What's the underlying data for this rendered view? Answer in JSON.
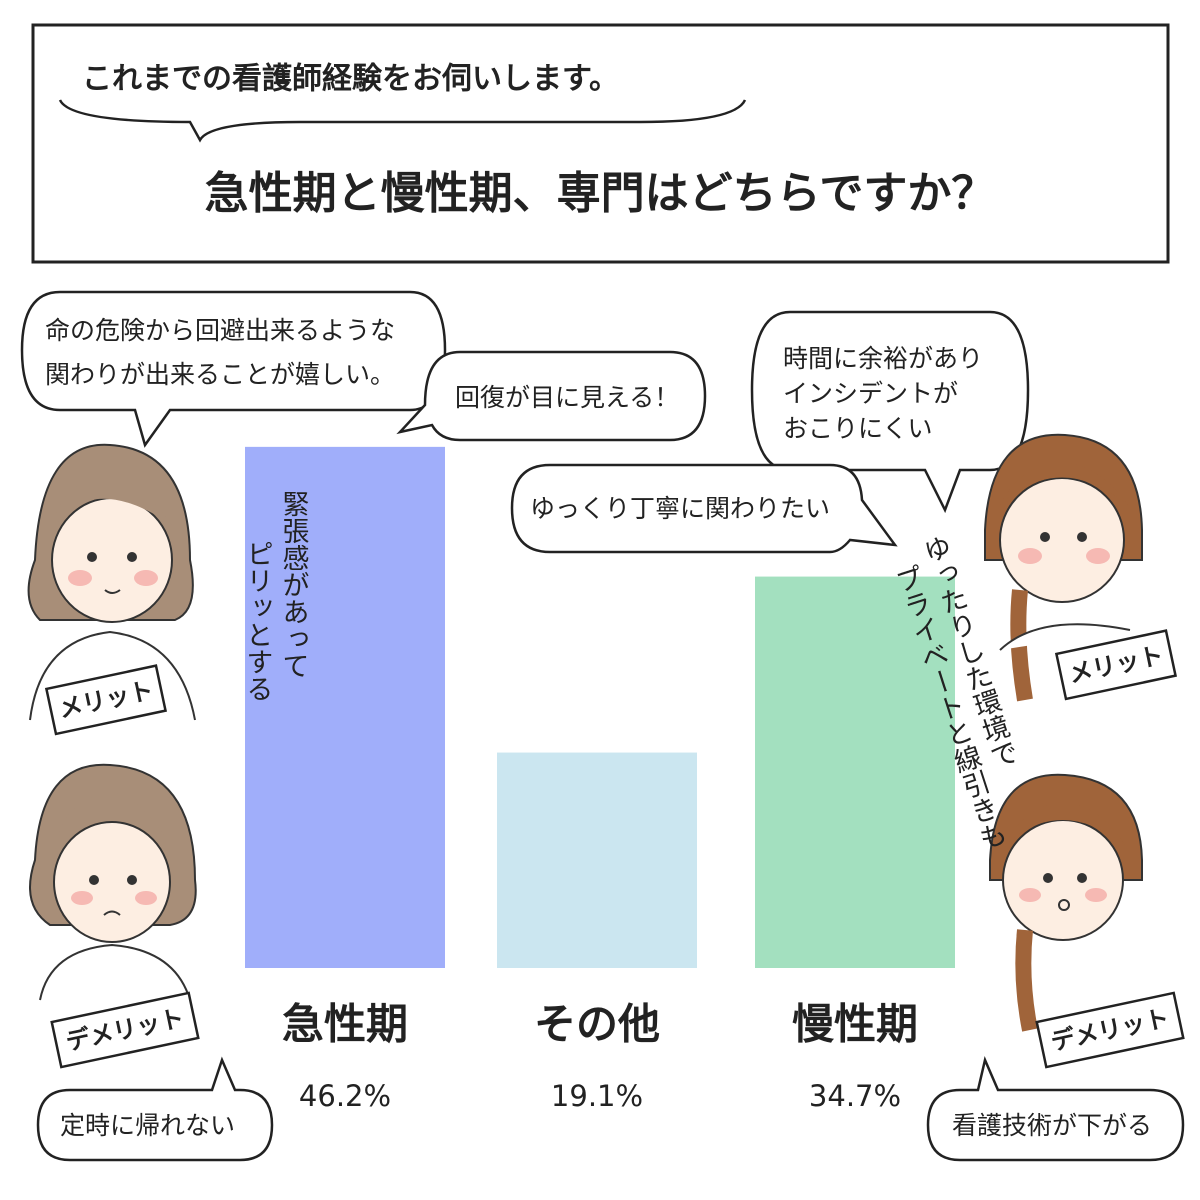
{
  "header": {
    "subtitle": "これまでの看護師経験をお伺いします。",
    "title": "急性期と慢性期、専門はどちらですか？"
  },
  "chart_data": {
    "type": "bar",
    "categories": [
      "急性期",
      "その他",
      "慢性期"
    ],
    "values": [
      46.2,
      19.1,
      34.7
    ],
    "value_labels": [
      "46.2%",
      "19.1%",
      "34.7%"
    ],
    "colors": [
      "#a0aefa",
      "#cbe6f0",
      "#a3e0bf"
    ]
  },
  "left": {
    "merit_tag": "メリット",
    "demerit_tag": "デメリット",
    "bubbles": [
      [
        "命の危険から回避出来るような",
        "関わりが出来ることが嬉しい。"
      ],
      [
        "回復が目に見える！"
      ]
    ],
    "merit_note": [
      "緊張感があって",
      "ピリッとする"
    ],
    "demerit_note": "定時に帰れない"
  },
  "right": {
    "merit_tag": "メリット",
    "demerit_tag": "デメリット",
    "bubbles": [
      [
        "時間に余裕があり",
        "インシデントが",
        "おこりにくい"
      ],
      [
        "ゆっくり丁寧に関わりたい"
      ]
    ],
    "merit_note": [
      "ゆったりした環境で",
      "プライベートと線引きも"
    ],
    "demerit_note": "看護技術が下がる"
  }
}
